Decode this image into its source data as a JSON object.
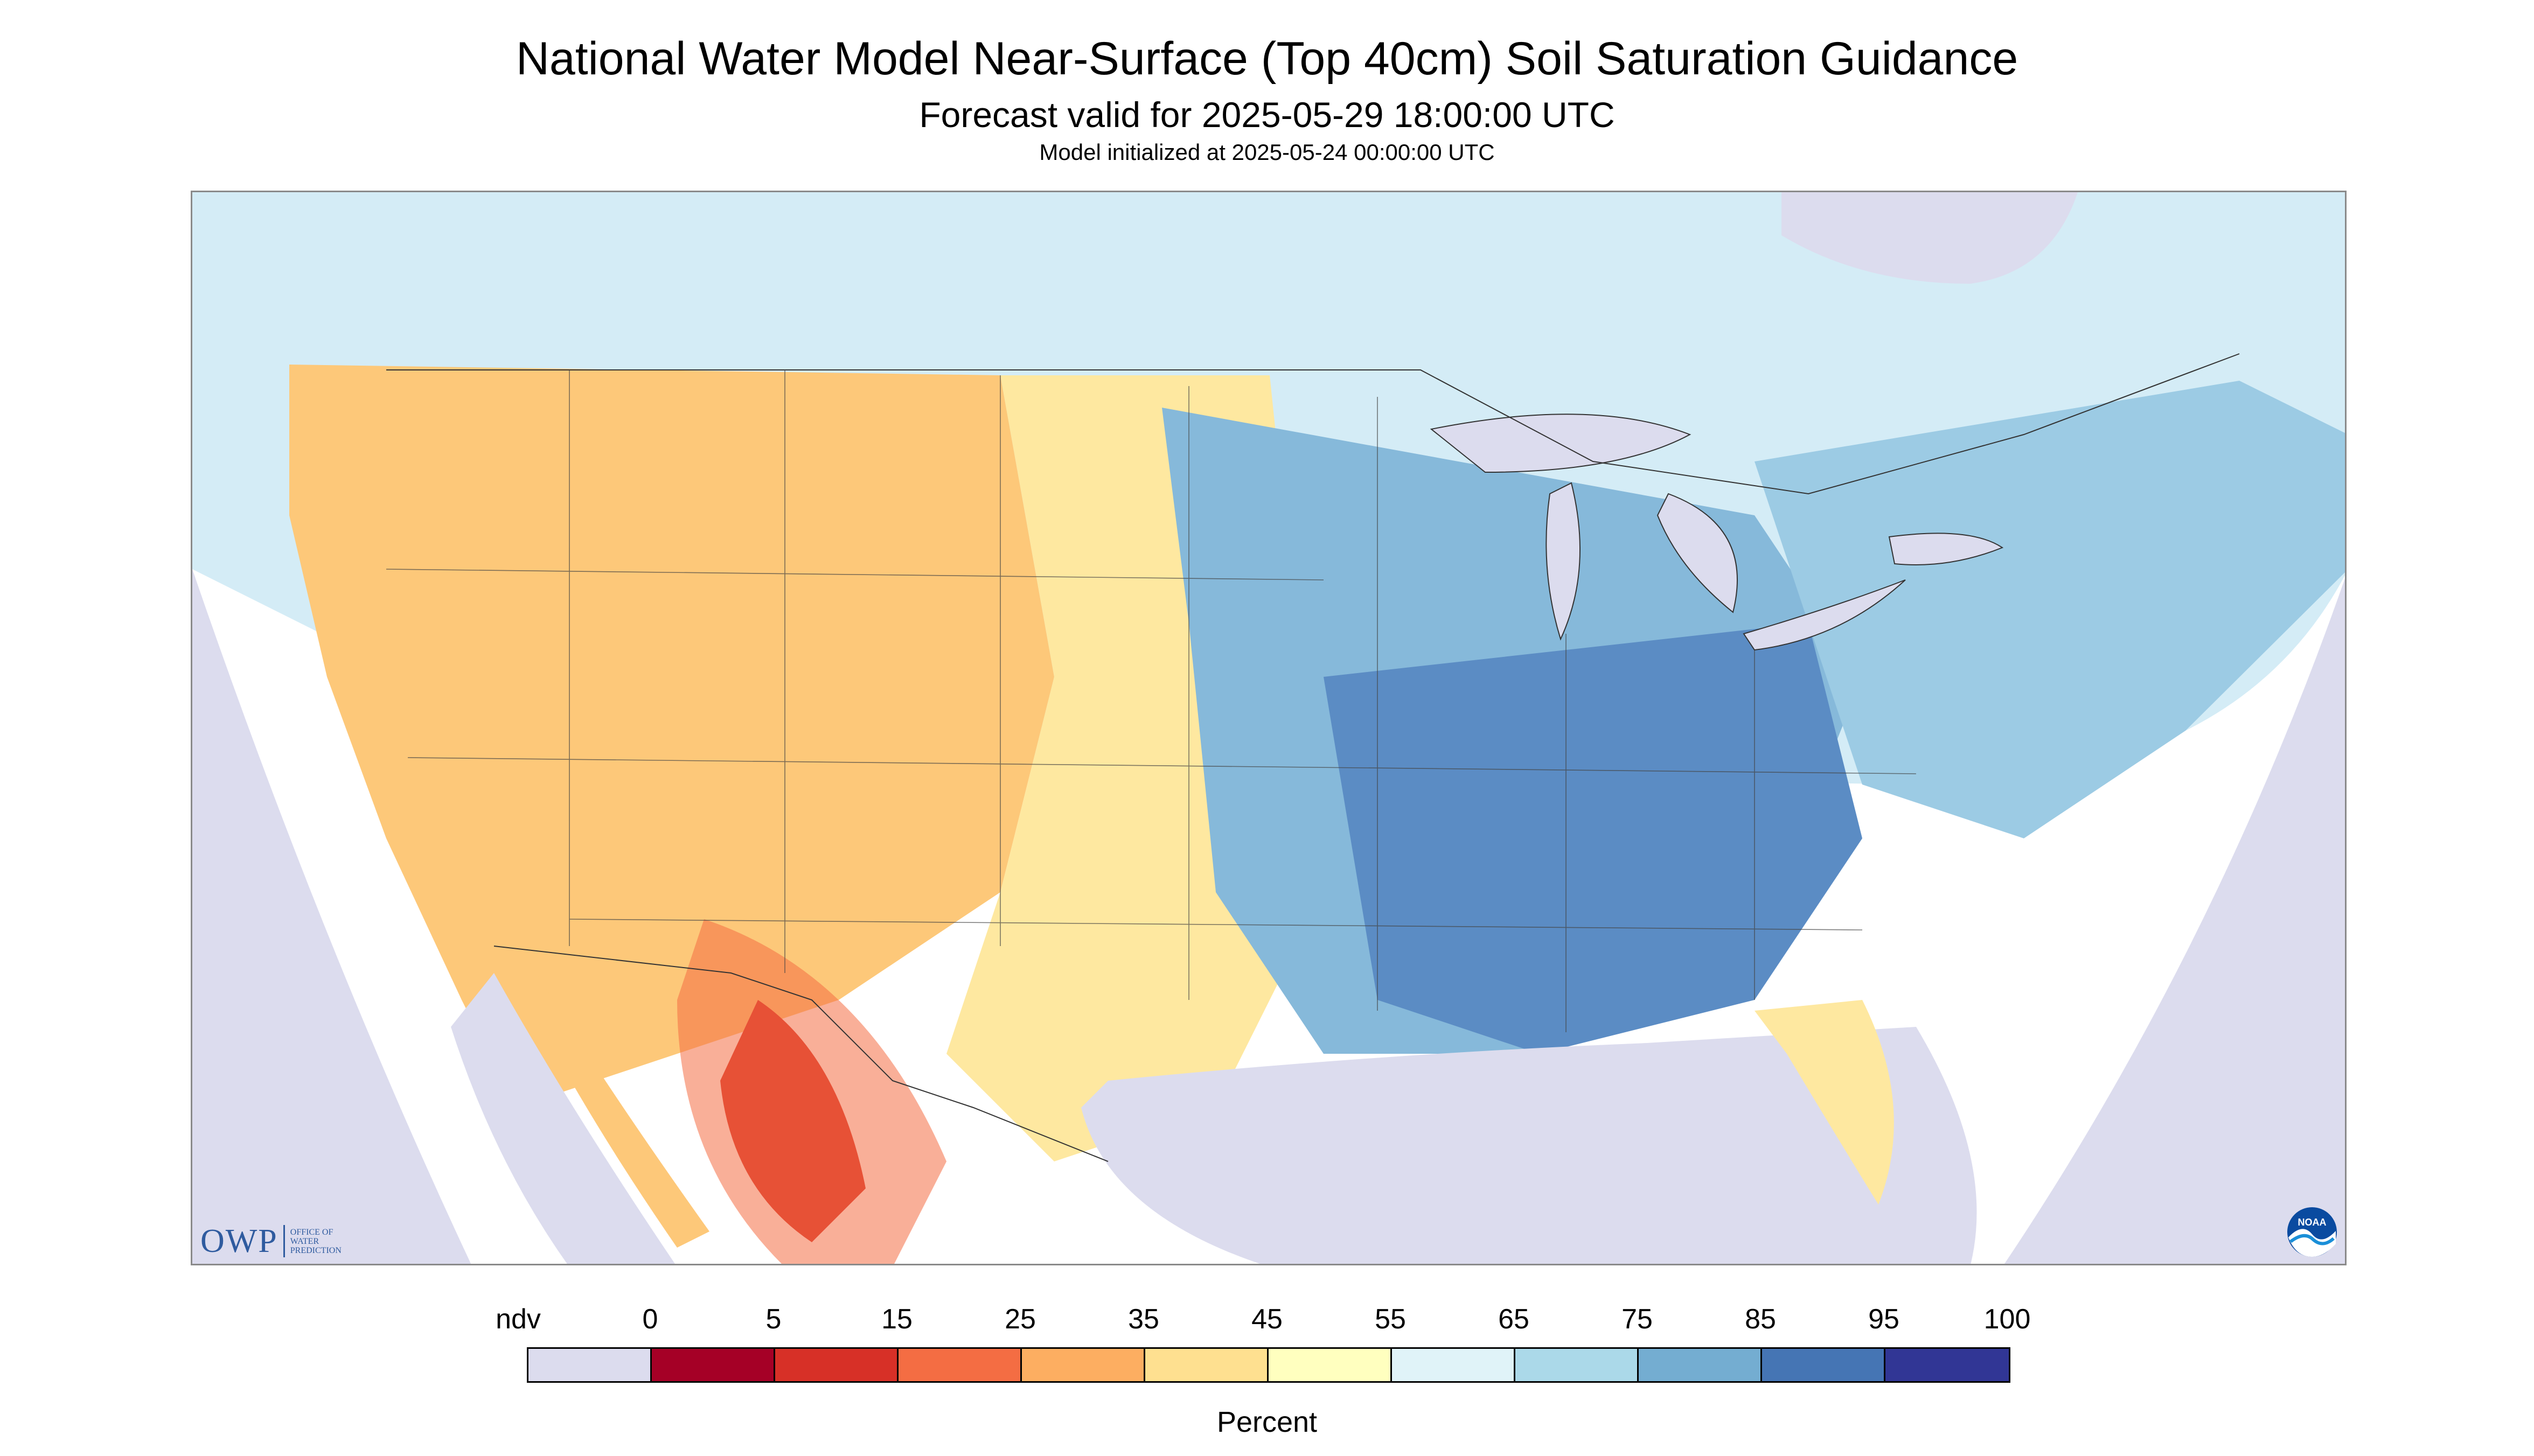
{
  "title": "National Water Model Near-Surface (Top 40cm) Soil Saturation Guidance",
  "subtitle": "Forecast valid for 2025-05-29 18:00:00 UTC",
  "initialized": "Model initialized at 2025-05-24 00:00:00 UTC",
  "legend": {
    "labels": [
      "ndv",
      "0",
      "5",
      "15",
      "25",
      "35",
      "45",
      "55",
      "65",
      "75",
      "85",
      "95",
      "100"
    ],
    "colors": [
      "#dcdcee",
      "#a50026",
      "#d73027",
      "#f46d43",
      "#fdae61",
      "#fee090",
      "#ffffbf",
      "#e0f3f8",
      "#abd9e9",
      "#74add1",
      "#4575b4",
      "#313695"
    ],
    "unit": "Percent"
  },
  "map": {
    "no_data_color": "#dcdcee",
    "water_color": "#dcdcee",
    "region_colors": {
      "west_dry": "#fdae61",
      "southwest_very_dry": "#d73027",
      "plains_moderate": "#fee090",
      "midwest_wet": "#74add1",
      "southeast_very_wet": "#4575b4",
      "northeast_wet": "#abd9e9",
      "canada_moist": "#e0f3f8"
    }
  },
  "logos": {
    "owp_mark": "OWP",
    "owp_subtext": [
      "OFFICE OF",
      "WATER",
      "PREDICTION"
    ],
    "noaa_mark": "NOAA"
  }
}
